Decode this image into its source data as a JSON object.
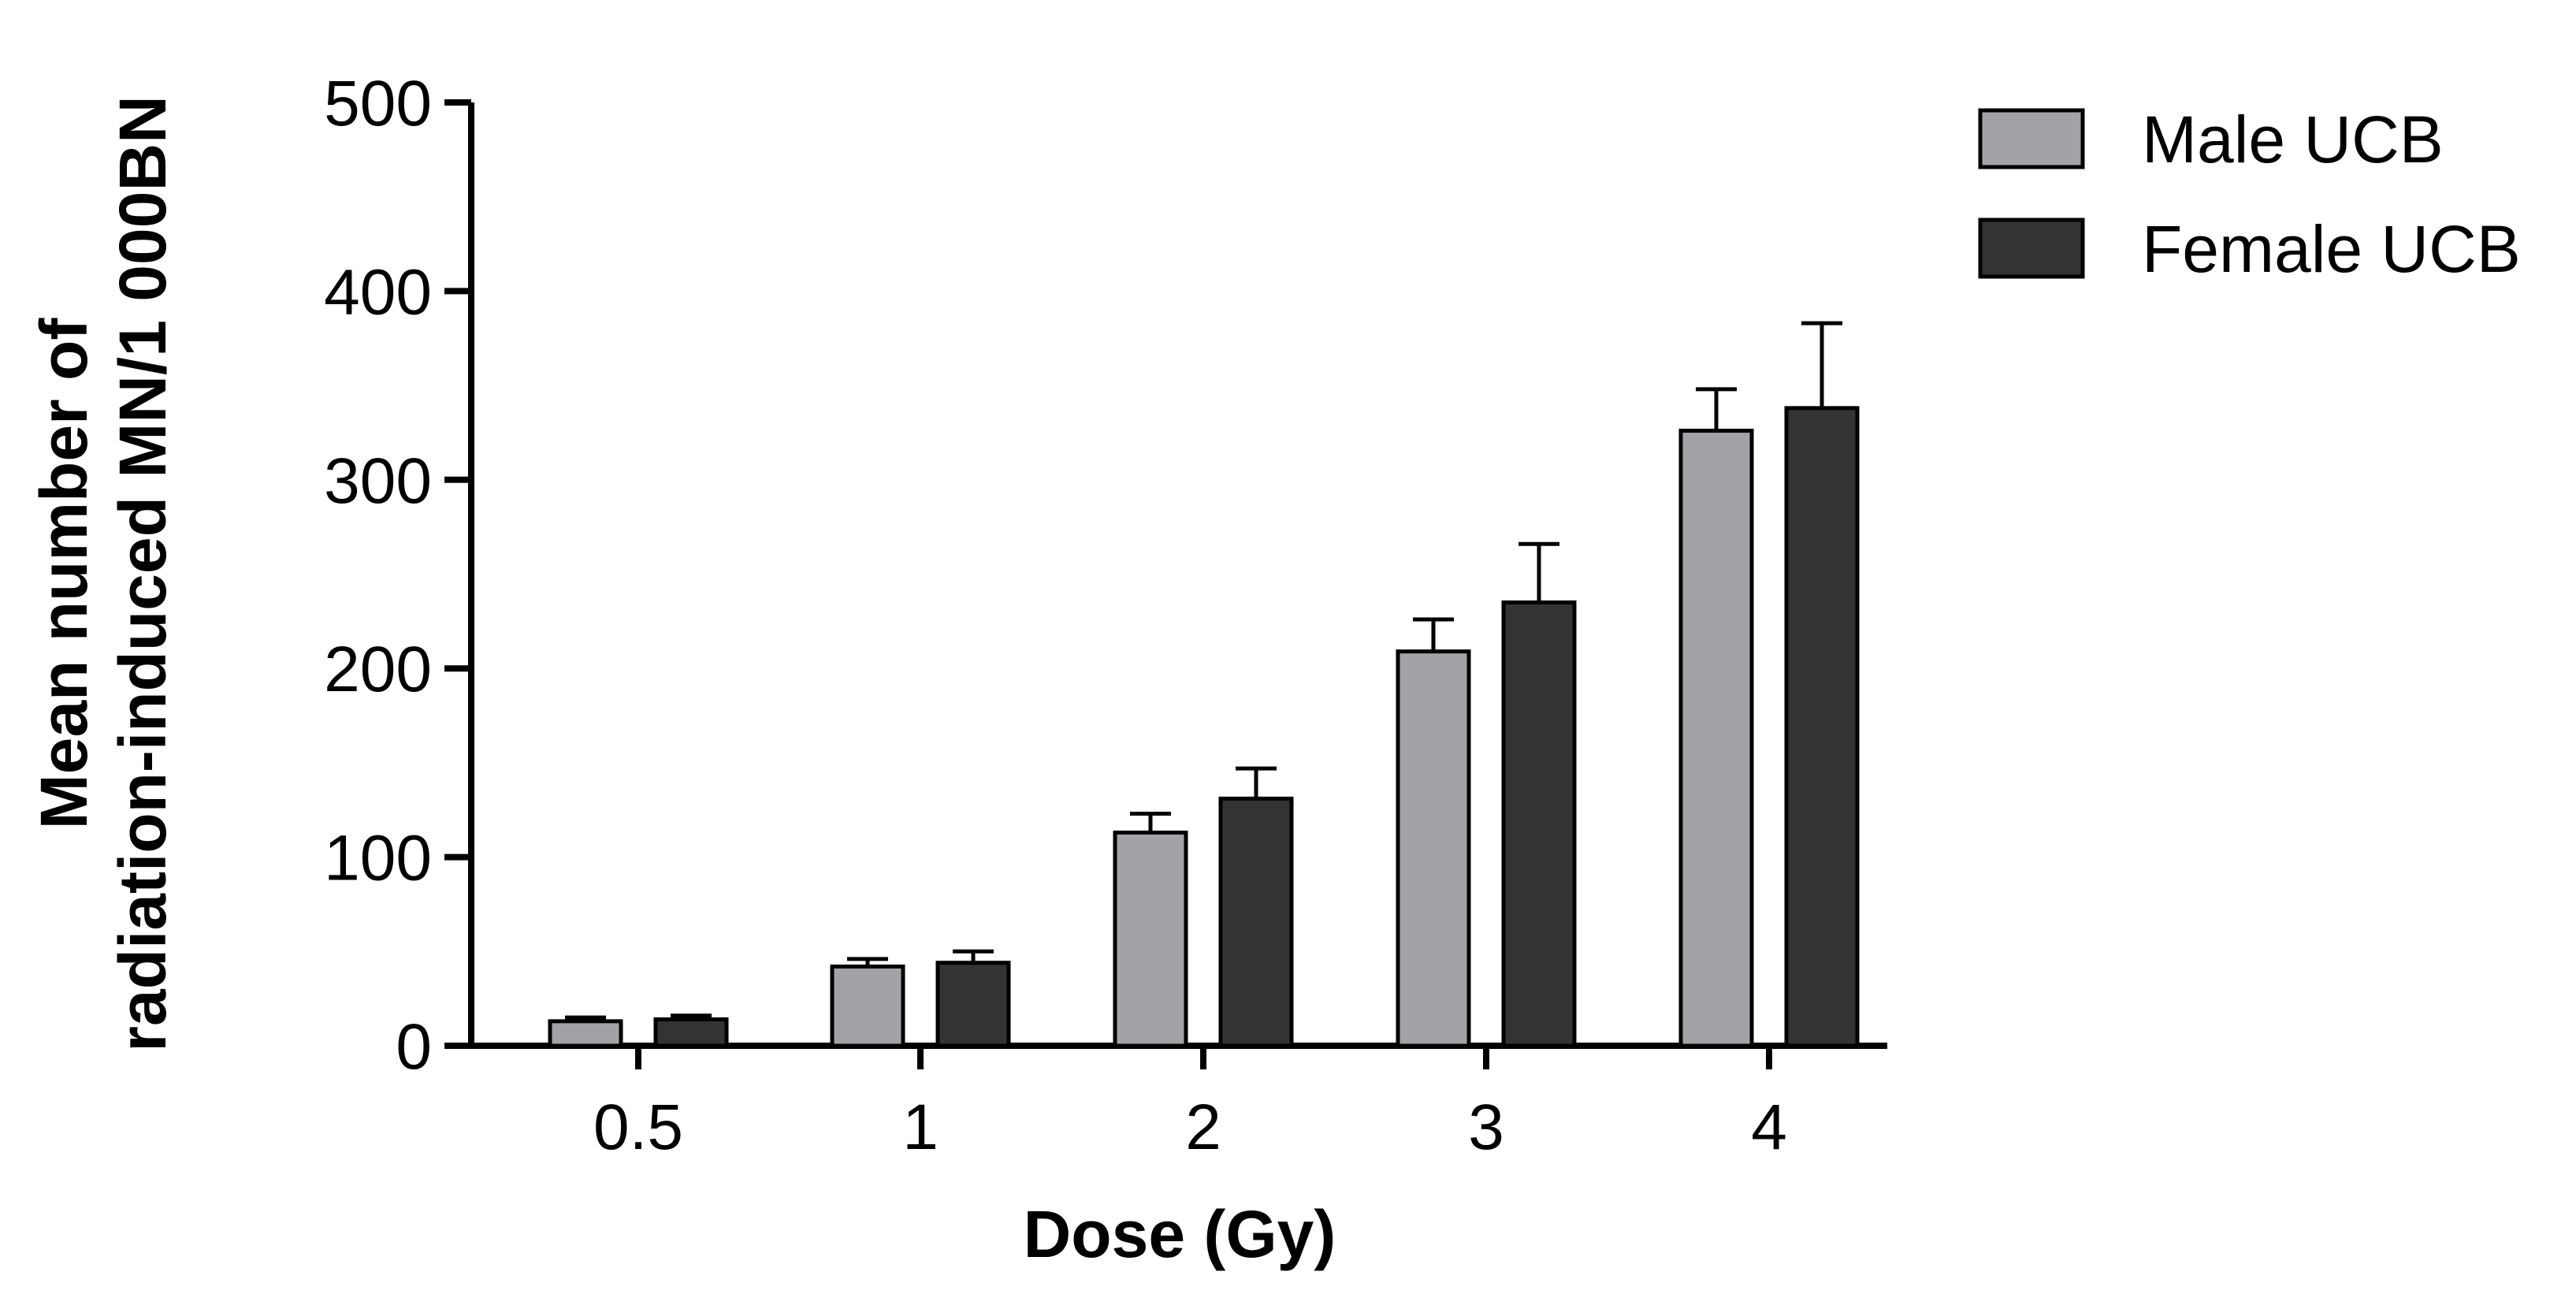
{
  "chart_data": {
    "type": "bar",
    "title": "",
    "xlabel": "Dose (Gy)",
    "ylabel_lines": [
      "Mean number of",
      "radiation-induced MN/1 000BN"
    ],
    "categories": [
      "0.5",
      "1",
      "2",
      "3",
      "4"
    ],
    "ylim": [
      0,
      500
    ],
    "yticks": [
      0,
      100,
      200,
      300,
      400,
      500
    ],
    "ytick_labels": [
      "0",
      "100",
      "200",
      "300",
      "400",
      "500"
    ],
    "legend_position": "top-right",
    "series": [
      {
        "name": "Male UCB",
        "color": "#a3a3a7",
        "values": [
          13,
          42,
          113,
          209,
          326
        ],
        "errors": [
          2,
          4,
          10,
          17,
          22
        ]
      },
      {
        "name": "Female UCB",
        "color": "#333333",
        "values": [
          14,
          44,
          131,
          235,
          338
        ],
        "errors": [
          2,
          6,
          16,
          31,
          45
        ]
      }
    ]
  }
}
